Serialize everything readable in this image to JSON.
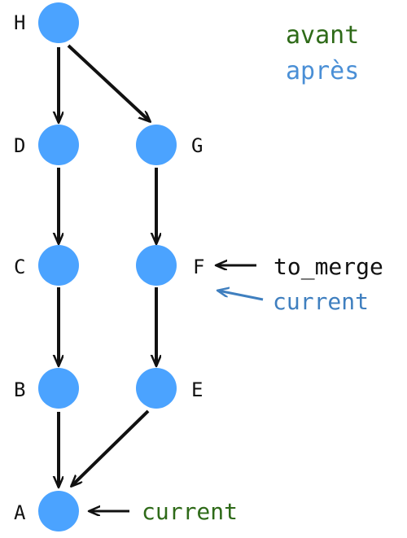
{
  "colors": {
    "node_fill": "#4ba3ff",
    "edge_color": "#111111",
    "label_color": "#111111",
    "avant_color": "#2e6a18",
    "apres_color": "#4a8fd6",
    "to_merge_color": "#111111",
    "current_after_color": "#3f7fbf",
    "current_before_color": "#2e6a18"
  },
  "legend": {
    "avant": "avant",
    "apres": "après"
  },
  "nodes": {
    "H": "H",
    "D": "D",
    "G": "G",
    "C": "C",
    "F": "F",
    "B": "B",
    "E": "E",
    "A": "A"
  },
  "annotations": {
    "to_merge": "to_merge",
    "current_after": "current",
    "current_before": "current"
  }
}
